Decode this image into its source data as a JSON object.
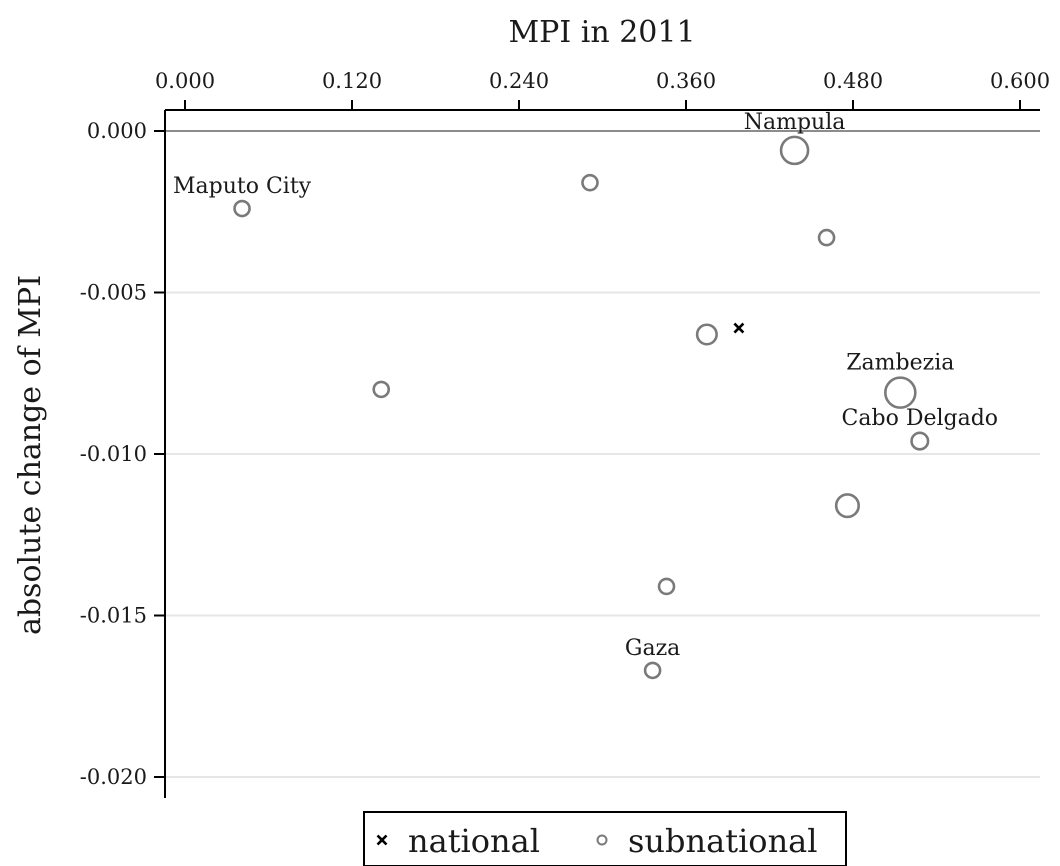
{
  "chart_data": {
    "type": "scatter",
    "title": "",
    "xlabel": "MPI in 2011",
    "ylabel": "absolute change of MPI",
    "xlim": [
      0.0,
      0.6
    ],
    "ylim": [
      -0.02,
      0.0
    ],
    "x_axis_position": "top",
    "x_ticks": [
      "0.000",
      "0.120",
      "0.240",
      "0.360",
      "0.480",
      "0.600"
    ],
    "x_tick_values": [
      0.0,
      0.12,
      0.24,
      0.36,
      0.48,
      0.6
    ],
    "y_ticks": [
      "0.000",
      "-0.005",
      "-0.010",
      "-0.015",
      "-0.020"
    ],
    "y_tick_values": [
      0.0,
      -0.005,
      -0.01,
      -0.015,
      -0.02
    ],
    "reference_line_y": 0.0,
    "grid": "horizontal",
    "legend_position": "bottom",
    "series": [
      {
        "name": "national",
        "marker": "cross",
        "color": "#000000",
        "points": [
          {
            "x": 0.398,
            "y": -0.0061,
            "label": ""
          }
        ]
      },
      {
        "name": "subnational",
        "marker": "circle",
        "color": "#7a7a7a",
        "points": [
          {
            "x": 0.041,
            "y": -0.0024,
            "size": 1.0,
            "label": "Maputo City"
          },
          {
            "x": 0.141,
            "y": -0.008,
            "size": 1.0,
            "label": ""
          },
          {
            "x": 0.291,
            "y": -0.0016,
            "size": 1.0,
            "label": ""
          },
          {
            "x": 0.336,
            "y": -0.0167,
            "size": 1.0,
            "label": "Gaza"
          },
          {
            "x": 0.346,
            "y": -0.0141,
            "size": 1.0,
            "label": ""
          },
          {
            "x": 0.375,
            "y": -0.0063,
            "size": 1.3,
            "label": ""
          },
          {
            "x": 0.438,
            "y": -0.0006,
            "size": 1.8,
            "label": "Nampula"
          },
          {
            "x": 0.461,
            "y": -0.0033,
            "size": 1.0,
            "label": ""
          },
          {
            "x": 0.476,
            "y": -0.0116,
            "size": 1.5,
            "label": ""
          },
          {
            "x": 0.514,
            "y": -0.0081,
            "size": 2.0,
            "label": "Zambezia"
          },
          {
            "x": 0.528,
            "y": -0.0096,
            "size": 1.1,
            "label": "Cabo Delgado"
          }
        ]
      }
    ]
  }
}
